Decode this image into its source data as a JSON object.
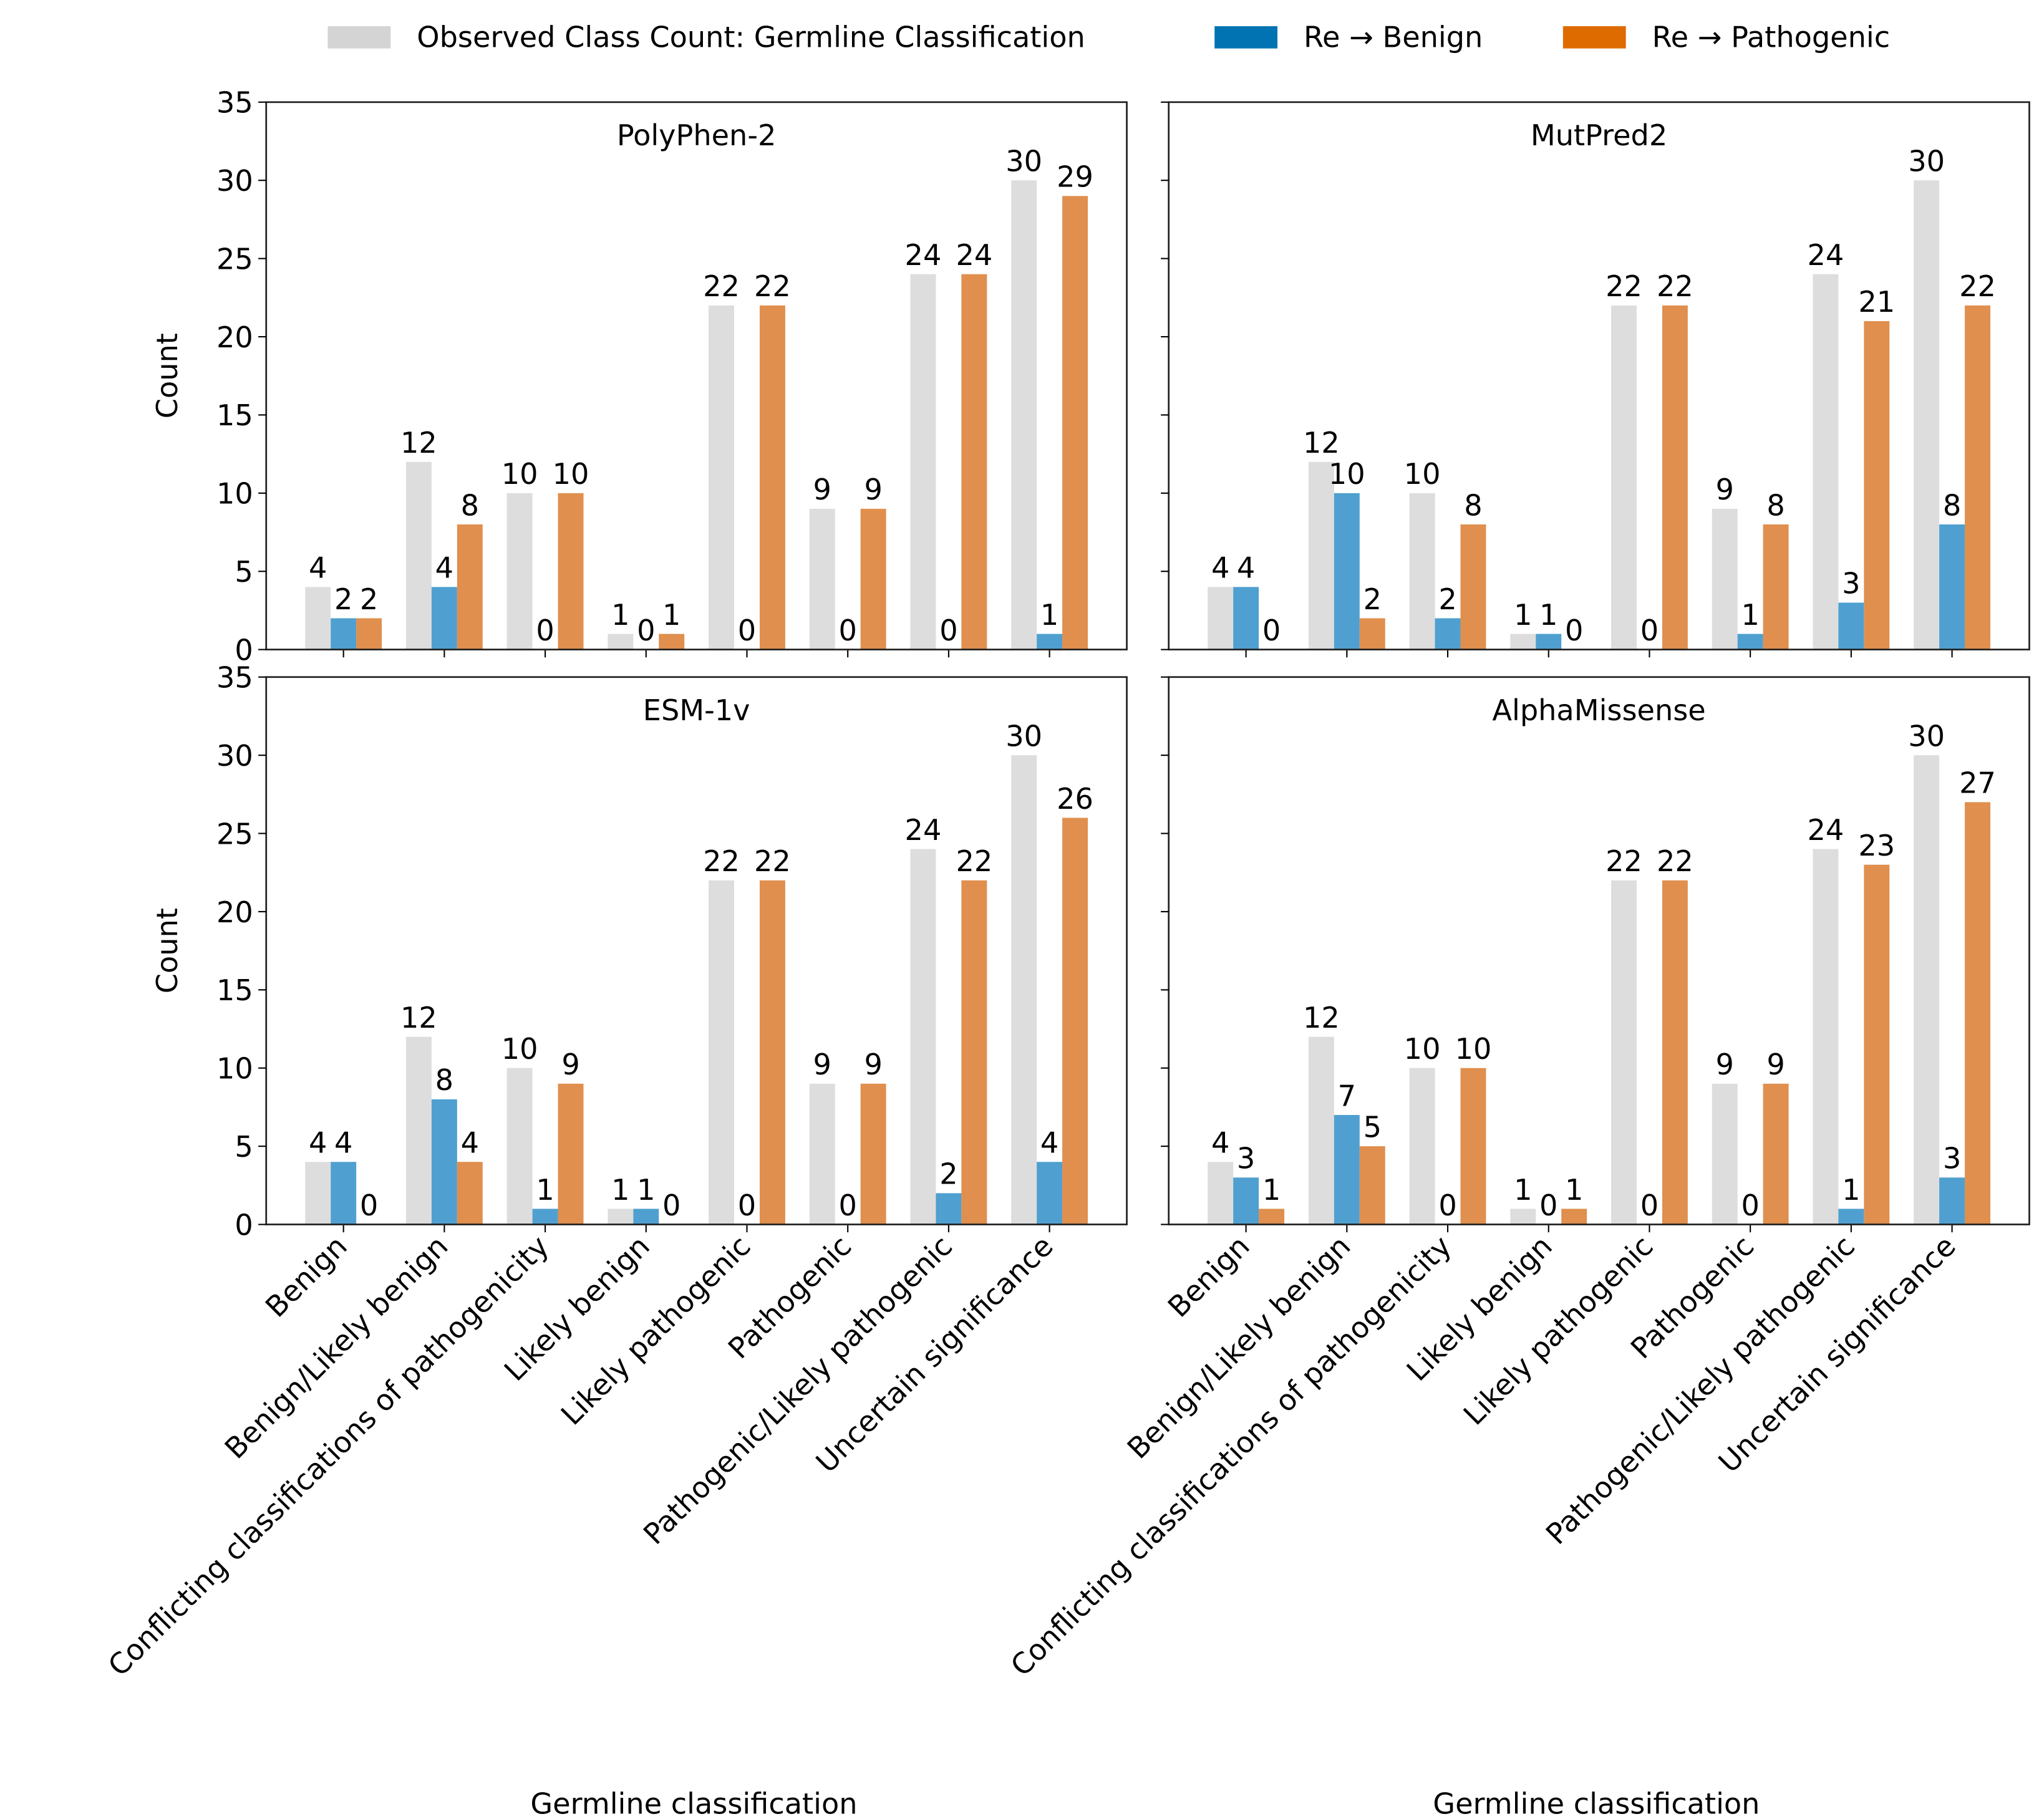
{
  "legend": {
    "placement": "top-center",
    "items": [
      {
        "label": "Observed Class Count: Germline Classification",
        "color": "#d4d4d4"
      },
      {
        "label": "Re → Benign",
        "color": "#0173b2"
      },
      {
        "label": "Re → Pathogenic",
        "color": "#de6b00"
      }
    ]
  },
  "chart_data": [
    {
      "type": "bar",
      "title": "PolyPhen-2",
      "xlabel": "",
      "ylabel": "Count",
      "ylim": [
        0,
        35
      ],
      "categories": [
        "Benign",
        "Benign/Likely benign",
        "Conflicting classifications of pathogenicity",
        "Likely benign",
        "Likely pathogenic",
        "Pathogenic",
        "Pathogenic/Likely pathogenic",
        "Uncertain significance"
      ],
      "series": [
        {
          "name": "Observed Class Count: Germline Classification",
          "values": [
            4,
            12,
            10,
            1,
            22,
            9,
            24,
            30
          ]
        },
        {
          "name": "Re → Benign",
          "values": [
            2,
            4,
            0,
            0,
            0,
            0,
            0,
            1
          ]
        },
        {
          "name": "Re → Pathogenic",
          "values": [
            2,
            8,
            10,
            1,
            22,
            9,
            24,
            29
          ]
        }
      ]
    },
    {
      "type": "bar",
      "title": "MutPred2",
      "xlabel": "",
      "ylabel": "",
      "ylim": [
        0,
        35
      ],
      "categories": [
        "Benign",
        "Benign/Likely benign",
        "Conflicting classifications of pathogenicity",
        "Likely benign",
        "Likely pathogenic",
        "Pathogenic",
        "Pathogenic/Likely pathogenic",
        "Uncertain significance"
      ],
      "series": [
        {
          "name": "Observed Class Count: Germline Classification",
          "values": [
            4,
            12,
            10,
            1,
            22,
            9,
            24,
            30
          ]
        },
        {
          "name": "Re → Benign",
          "values": [
            4,
            10,
            2,
            1,
            0,
            1,
            3,
            8
          ]
        },
        {
          "name": "Re → Pathogenic",
          "values": [
            0,
            2,
            8,
            0,
            22,
            8,
            21,
            22
          ]
        }
      ]
    },
    {
      "type": "bar",
      "title": "ESM-1v",
      "xlabel": "Germline classification",
      "ylabel": "Count",
      "ylim": [
        0,
        35
      ],
      "categories": [
        "Benign",
        "Benign/Likely benign",
        "Conflicting classifications of pathogenicity",
        "Likely benign",
        "Likely pathogenic",
        "Pathogenic",
        "Pathogenic/Likely pathogenic",
        "Uncertain significance"
      ],
      "series": [
        {
          "name": "Observed Class Count: Germline Classification",
          "values": [
            4,
            12,
            10,
            1,
            22,
            9,
            24,
            30
          ]
        },
        {
          "name": "Re → Benign",
          "values": [
            4,
            8,
            1,
            1,
            0,
            0,
            2,
            4
          ]
        },
        {
          "name": "Re → Pathogenic",
          "values": [
            0,
            4,
            9,
            0,
            22,
            9,
            22,
            26
          ]
        }
      ]
    },
    {
      "type": "bar",
      "title": "AlphaMissense",
      "xlabel": "Germline classification",
      "ylabel": "",
      "ylim": [
        0,
        35
      ],
      "categories": [
        "Benign",
        "Benign/Likely benign",
        "Conflicting classifications of pathogenicity",
        "Likely benign",
        "Likely pathogenic",
        "Pathogenic",
        "Pathogenic/Likely pathogenic",
        "Uncertain significance"
      ],
      "series": [
        {
          "name": "Observed Class Count: Germline Classification",
          "values": [
            4,
            12,
            10,
            1,
            22,
            9,
            24,
            30
          ]
        },
        {
          "name": "Re → Benign",
          "values": [
            3,
            7,
            0,
            0,
            0,
            0,
            1,
            3
          ]
        },
        {
          "name": "Re → Pathogenic",
          "values": [
            1,
            5,
            10,
            1,
            22,
            9,
            23,
            27
          ]
        }
      ]
    }
  ],
  "yticks": [
    0,
    5,
    10,
    15,
    20,
    25,
    30,
    35
  ],
  "bar_colors": [
    "#dddddd",
    "#4fa0d0",
    "#e08f4e"
  ]
}
